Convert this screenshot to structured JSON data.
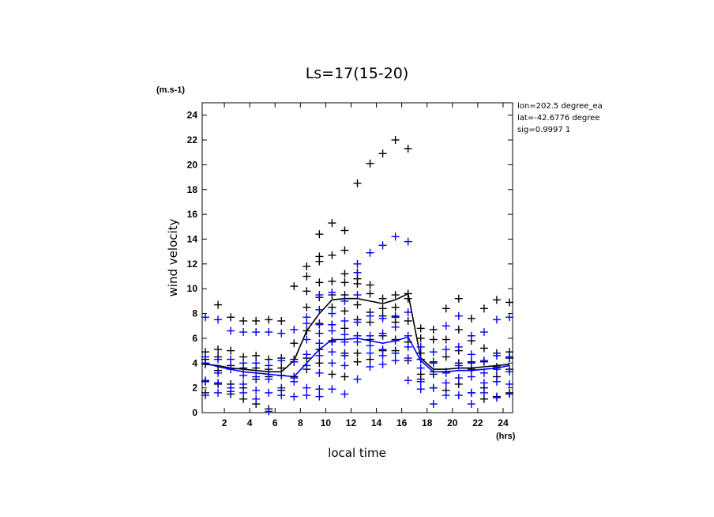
{
  "chart_data": {
    "type": "scatter",
    "title": "Ls=17(15-20)",
    "xlabel": "local time",
    "ylabel": "wind velocity",
    "x_unit": "(hrs)",
    "y_unit": "(m.s-1)",
    "xlim": [
      0.25,
      24.75
    ],
    "ylim": [
      0,
      25
    ],
    "xticks": [
      2,
      4,
      6,
      8,
      10,
      12,
      14,
      16,
      18,
      20,
      22,
      24
    ],
    "yticks": [
      0,
      2,
      4,
      6,
      8,
      10,
      12,
      14,
      16,
      18,
      20,
      22,
      24
    ],
    "info": [
      "lon=202.5 degree_ea",
      "lat=-42.6776 degree",
      "sig=0.9997 1"
    ],
    "colors": {
      "black_series": "#000000",
      "blue_series": "#0000ff"
    },
    "series": [
      {
        "color": "#000000",
        "style": "line",
        "x": [
          0.5,
          1.5,
          2.5,
          3.5,
          4.5,
          5.5,
          6.5,
          7.5,
          8.5,
          9.5,
          10.5,
          11.5,
          12.5,
          13.5,
          14.5,
          15.5,
          16.5,
          17.5,
          18.5,
          19.5,
          20.5,
          21.5,
          22.5,
          23.5,
          24.5
        ],
        "y": [
          3.9,
          3.8,
          3.6,
          3.5,
          3.4,
          3.3,
          3.3,
          4.2,
          6.6,
          8.0,
          9.1,
          9.2,
          9.2,
          9.0,
          8.8,
          9.1,
          9.6,
          4.4,
          3.5,
          3.5,
          3.6,
          3.6,
          3.7,
          3.8,
          3.9
        ]
      },
      {
        "color": "#0000ff",
        "style": "line",
        "x": [
          0.5,
          1.5,
          2.5,
          3.5,
          4.5,
          5.5,
          6.5,
          7.5,
          8.5,
          9.5,
          10.5,
          11.5,
          12.5,
          13.5,
          14.5,
          15.5,
          16.5,
          17.5,
          18.5,
          19.5,
          20.5,
          21.5,
          22.5,
          23.5,
          24.5
        ],
        "y": [
          4.0,
          3.7,
          3.5,
          3.3,
          3.2,
          3.1,
          3.0,
          2.9,
          4.0,
          5.1,
          5.9,
          5.9,
          6.0,
          5.8,
          5.6,
          5.8,
          6.1,
          4.2,
          3.3,
          3.3,
          3.4,
          3.4,
          3.5,
          3.6,
          3.8
        ]
      },
      {
        "color": "#000000",
        "style": "markers",
        "marker": "+",
        "points": [
          [
            0.5,
            4.9
          ],
          [
            0.5,
            4.3
          ],
          [
            0.5,
            3.9
          ],
          [
            0.5,
            2.5
          ],
          [
            0.5,
            1.6
          ],
          [
            1.5,
            8.7
          ],
          [
            1.5,
            5.1
          ],
          [
            1.5,
            4.5
          ],
          [
            1.5,
            3.4
          ],
          [
            1.5,
            2.3
          ],
          [
            2.5,
            7.7
          ],
          [
            2.5,
            5.0
          ],
          [
            2.5,
            3.8
          ],
          [
            2.5,
            2.3
          ],
          [
            2.5,
            1.5
          ],
          [
            3.5,
            7.4
          ],
          [
            3.5,
            4.5
          ],
          [
            3.5,
            3.6
          ],
          [
            3.5,
            2.0
          ],
          [
            3.5,
            1.1
          ],
          [
            4.5,
            7.4
          ],
          [
            4.5,
            4.6
          ],
          [
            4.5,
            3.6
          ],
          [
            4.5,
            2.7
          ],
          [
            4.5,
            0.7
          ],
          [
            5.5,
            7.5
          ],
          [
            5.5,
            4.3
          ],
          [
            5.5,
            3.5
          ],
          [
            5.5,
            2.9
          ],
          [
            5.5,
            0.3
          ],
          [
            6.5,
            7.4
          ],
          [
            6.5,
            4.4
          ],
          [
            6.5,
            3.6
          ],
          [
            6.5,
            3.0
          ],
          [
            6.5,
            1.8
          ],
          [
            7.5,
            10.2
          ],
          [
            7.5,
            5.6
          ],
          [
            7.5,
            4.3
          ],
          [
            7.5,
            4.1
          ],
          [
            7.5,
            2.9
          ],
          [
            8.5,
            11.8
          ],
          [
            8.5,
            11.0
          ],
          [
            8.5,
            9.8
          ],
          [
            8.5,
            8.5
          ],
          [
            8.5,
            6.6
          ],
          [
            8.5,
            4.4
          ],
          [
            8.5,
            3.5
          ],
          [
            9.5,
            14.4
          ],
          [
            9.5,
            12.6
          ],
          [
            9.5,
            12.2
          ],
          [
            9.5,
            10.5
          ],
          [
            9.5,
            9.3
          ],
          [
            9.5,
            7.2
          ],
          [
            9.5,
            5.1
          ],
          [
            9.5,
            4.0
          ],
          [
            10.5,
            15.3
          ],
          [
            10.5,
            12.7
          ],
          [
            10.5,
            10.6
          ],
          [
            10.5,
            9.5
          ],
          [
            10.5,
            8.5
          ],
          [
            10.5,
            7.1
          ],
          [
            10.5,
            5.8
          ],
          [
            10.5,
            3.1
          ],
          [
            11.5,
            14.7
          ],
          [
            11.5,
            13.1
          ],
          [
            11.5,
            11.2
          ],
          [
            11.5,
            10.5
          ],
          [
            11.5,
            9.5
          ],
          [
            11.5,
            8.2
          ],
          [
            11.5,
            6.8
          ],
          [
            11.5,
            4.8
          ],
          [
            11.5,
            2.9
          ],
          [
            12.5,
            18.5
          ],
          [
            12.5,
            11.3
          ],
          [
            12.5,
            10.8
          ],
          [
            12.5,
            10.4
          ],
          [
            12.5,
            8.7
          ],
          [
            12.5,
            7.5
          ],
          [
            12.5,
            4.8
          ],
          [
            12.5,
            4.1
          ],
          [
            13.5,
            20.1
          ],
          [
            13.5,
            10.3
          ],
          [
            13.5,
            9.6
          ],
          [
            13.5,
            8.1
          ],
          [
            13.5,
            7.3
          ],
          [
            13.5,
            5.9
          ],
          [
            13.5,
            4.3
          ],
          [
            14.5,
            20.9
          ],
          [
            14.5,
            9.2
          ],
          [
            14.5,
            8.4
          ],
          [
            14.5,
            7.8
          ],
          [
            14.5,
            6.2
          ],
          [
            14.5,
            5.0
          ],
          [
            15.5,
            22.0
          ],
          [
            15.5,
            9.5
          ],
          [
            15.5,
            8.5
          ],
          [
            15.5,
            7.7
          ],
          [
            15.5,
            7.3
          ],
          [
            15.5,
            5.9
          ],
          [
            15.5,
            5.0
          ],
          [
            16.5,
            21.3
          ],
          [
            16.5,
            9.6
          ],
          [
            16.5,
            9.2
          ],
          [
            16.5,
            7.4
          ],
          [
            16.5,
            5.7
          ],
          [
            16.5,
            4.2
          ],
          [
            17.5,
            6.8
          ],
          [
            17.5,
            6.0
          ],
          [
            17.5,
            4.8
          ],
          [
            17.5,
            4.3
          ],
          [
            17.5,
            3.1
          ],
          [
            17.5,
            2.7
          ],
          [
            18.5,
            6.7
          ],
          [
            18.5,
            5.9
          ],
          [
            18.5,
            4.1
          ],
          [
            18.5,
            3.1
          ],
          [
            18.5,
            2.0
          ],
          [
            19.5,
            8.4
          ],
          [
            19.5,
            5.9
          ],
          [
            19.5,
            4.5
          ],
          [
            19.5,
            3.3
          ],
          [
            19.5,
            1.8
          ],
          [
            20.5,
            9.2
          ],
          [
            20.5,
            6.7
          ],
          [
            20.5,
            5.0
          ],
          [
            20.5,
            4.0
          ],
          [
            20.5,
            2.3
          ],
          [
            21.5,
            7.6
          ],
          [
            21.5,
            5.8
          ],
          [
            21.5,
            4.1
          ],
          [
            21.5,
            3.5
          ],
          [
            21.5,
            1.6
          ],
          [
            22.5,
            8.4
          ],
          [
            22.5,
            5.2
          ],
          [
            22.5,
            4.1
          ],
          [
            22.5,
            2.0
          ],
          [
            22.5,
            1.1
          ],
          [
            23.5,
            9.1
          ],
          [
            23.5,
            4.8
          ],
          [
            23.5,
            3.7
          ],
          [
            23.5,
            2.9
          ],
          [
            23.5,
            1.3
          ],
          [
            24.5,
            8.9
          ],
          [
            24.5,
            4.9
          ],
          [
            24.5,
            4.4
          ],
          [
            24.5,
            3.5
          ],
          [
            24.5,
            1.6
          ]
        ]
      },
      {
        "color": "#0000ff",
        "style": "markers",
        "marker": "+",
        "points": [
          [
            0.5,
            7.7
          ],
          [
            0.5,
            4.5
          ],
          [
            0.5,
            4.0
          ],
          [
            0.5,
            2.6
          ],
          [
            0.5,
            1.4
          ],
          [
            1.5,
            7.5
          ],
          [
            1.5,
            4.3
          ],
          [
            1.5,
            3.2
          ],
          [
            1.5,
            2.4
          ],
          [
            1.5,
            1.6
          ],
          [
            2.5,
            6.6
          ],
          [
            2.5,
            4.3
          ],
          [
            2.5,
            3.5
          ],
          [
            2.5,
            2.0
          ],
          [
            2.5,
            1.7
          ],
          [
            3.5,
            6.5
          ],
          [
            3.5,
            4.0
          ],
          [
            3.5,
            3.0
          ],
          [
            3.5,
            2.3
          ],
          [
            3.5,
            1.6
          ],
          [
            4.5,
            6.5
          ],
          [
            4.5,
            4.0
          ],
          [
            4.5,
            2.9
          ],
          [
            4.5,
            1.8
          ],
          [
            4.5,
            1.1
          ],
          [
            5.5,
            6.5
          ],
          [
            5.5,
            3.8
          ],
          [
            5.5,
            2.7
          ],
          [
            5.5,
            1.6
          ],
          [
            5.5,
            0.1
          ],
          [
            6.5,
            6.4
          ],
          [
            6.5,
            4.2
          ],
          [
            6.5,
            3.0
          ],
          [
            6.5,
            2.0
          ],
          [
            6.5,
            1.4
          ],
          [
            7.5,
            6.7
          ],
          [
            7.5,
            4.1
          ],
          [
            7.5,
            2.8
          ],
          [
            7.5,
            2.5
          ],
          [
            7.5,
            1.3
          ],
          [
            8.5,
            7.7
          ],
          [
            8.5,
            7.2
          ],
          [
            8.5,
            5.9
          ],
          [
            8.5,
            4.7
          ],
          [
            8.5,
            3.8
          ],
          [
            8.5,
            2.0
          ],
          [
            8.5,
            1.4
          ],
          [
            9.5,
            9.5
          ],
          [
            9.5,
            8.3
          ],
          [
            9.5,
            7.1
          ],
          [
            9.5,
            6.4
          ],
          [
            9.5,
            5.6
          ],
          [
            9.5,
            4.6
          ],
          [
            9.5,
            3.2
          ],
          [
            9.5,
            1.9
          ],
          [
            9.5,
            1.3
          ],
          [
            10.5,
            9.7
          ],
          [
            10.5,
            8.0
          ],
          [
            10.5,
            7.1
          ],
          [
            10.5,
            6.6
          ],
          [
            10.5,
            5.7
          ],
          [
            10.5,
            4.9
          ],
          [
            10.5,
            4.0
          ],
          [
            10.5,
            1.9
          ],
          [
            11.5,
            9.0
          ],
          [
            11.5,
            7.4
          ],
          [
            11.5,
            6.3
          ],
          [
            11.5,
            5.7
          ],
          [
            11.5,
            4.6
          ],
          [
            11.5,
            3.8
          ],
          [
            11.5,
            1.5
          ],
          [
            12.5,
            12.0
          ],
          [
            12.5,
            11.3
          ],
          [
            12.5,
            9.5
          ],
          [
            12.5,
            7.3
          ],
          [
            12.5,
            6.2
          ],
          [
            12.5,
            5.7
          ],
          [
            12.5,
            2.7
          ],
          [
            13.5,
            12.9
          ],
          [
            13.5,
            7.8
          ],
          [
            13.5,
            6.2
          ],
          [
            13.5,
            5.4
          ],
          [
            13.5,
            4.8
          ],
          [
            13.5,
            3.7
          ],
          [
            14.5,
            13.5
          ],
          [
            14.5,
            7.6
          ],
          [
            14.5,
            6.4
          ],
          [
            14.5,
            5.1
          ],
          [
            14.5,
            4.6
          ],
          [
            14.5,
            3.9
          ],
          [
            15.5,
            14.2
          ],
          [
            15.5,
            7.8
          ],
          [
            15.5,
            6.9
          ],
          [
            15.5,
            5.8
          ],
          [
            15.5,
            4.8
          ],
          [
            15.5,
            4.2
          ],
          [
            16.5,
            13.8
          ],
          [
            16.5,
            8.1
          ],
          [
            16.5,
            6.2
          ],
          [
            16.5,
            5.3
          ],
          [
            16.5,
            4.4
          ],
          [
            16.5,
            2.6
          ],
          [
            17.5,
            5.3
          ],
          [
            17.5,
            4.3
          ],
          [
            17.5,
            3.6
          ],
          [
            17.5,
            2.5
          ],
          [
            17.5,
            1.9
          ],
          [
            18.5,
            4.9
          ],
          [
            18.5,
            4.0
          ],
          [
            18.5,
            3.3
          ],
          [
            18.5,
            2.0
          ],
          [
            18.5,
            0.7
          ],
          [
            19.5,
            7.0
          ],
          [
            19.5,
            5.1
          ],
          [
            19.5,
            3.2
          ],
          [
            19.5,
            2.4
          ],
          [
            19.5,
            1.4
          ],
          [
            20.5,
            7.8
          ],
          [
            20.5,
            5.3
          ],
          [
            20.5,
            3.8
          ],
          [
            20.5,
            2.8
          ],
          [
            20.5,
            1.4
          ],
          [
            21.5,
            6.2
          ],
          [
            21.5,
            4.7
          ],
          [
            21.5,
            4.0
          ],
          [
            21.5,
            2.9
          ],
          [
            21.5,
            1.6
          ],
          [
            21.5,
            0.7
          ],
          [
            22.5,
            6.5
          ],
          [
            22.5,
            4.2
          ],
          [
            22.5,
            3.2
          ],
          [
            22.5,
            2.4
          ],
          [
            22.5,
            1.6
          ],
          [
            23.5,
            7.5
          ],
          [
            23.5,
            4.6
          ],
          [
            23.5,
            3.5
          ],
          [
            23.5,
            2.5
          ],
          [
            23.5,
            1.2
          ],
          [
            24.5,
            7.7
          ],
          [
            24.5,
            4.5
          ],
          [
            24.5,
            3.3
          ],
          [
            24.5,
            2.3
          ],
          [
            24.5,
            1.5
          ]
        ]
      }
    ]
  }
}
